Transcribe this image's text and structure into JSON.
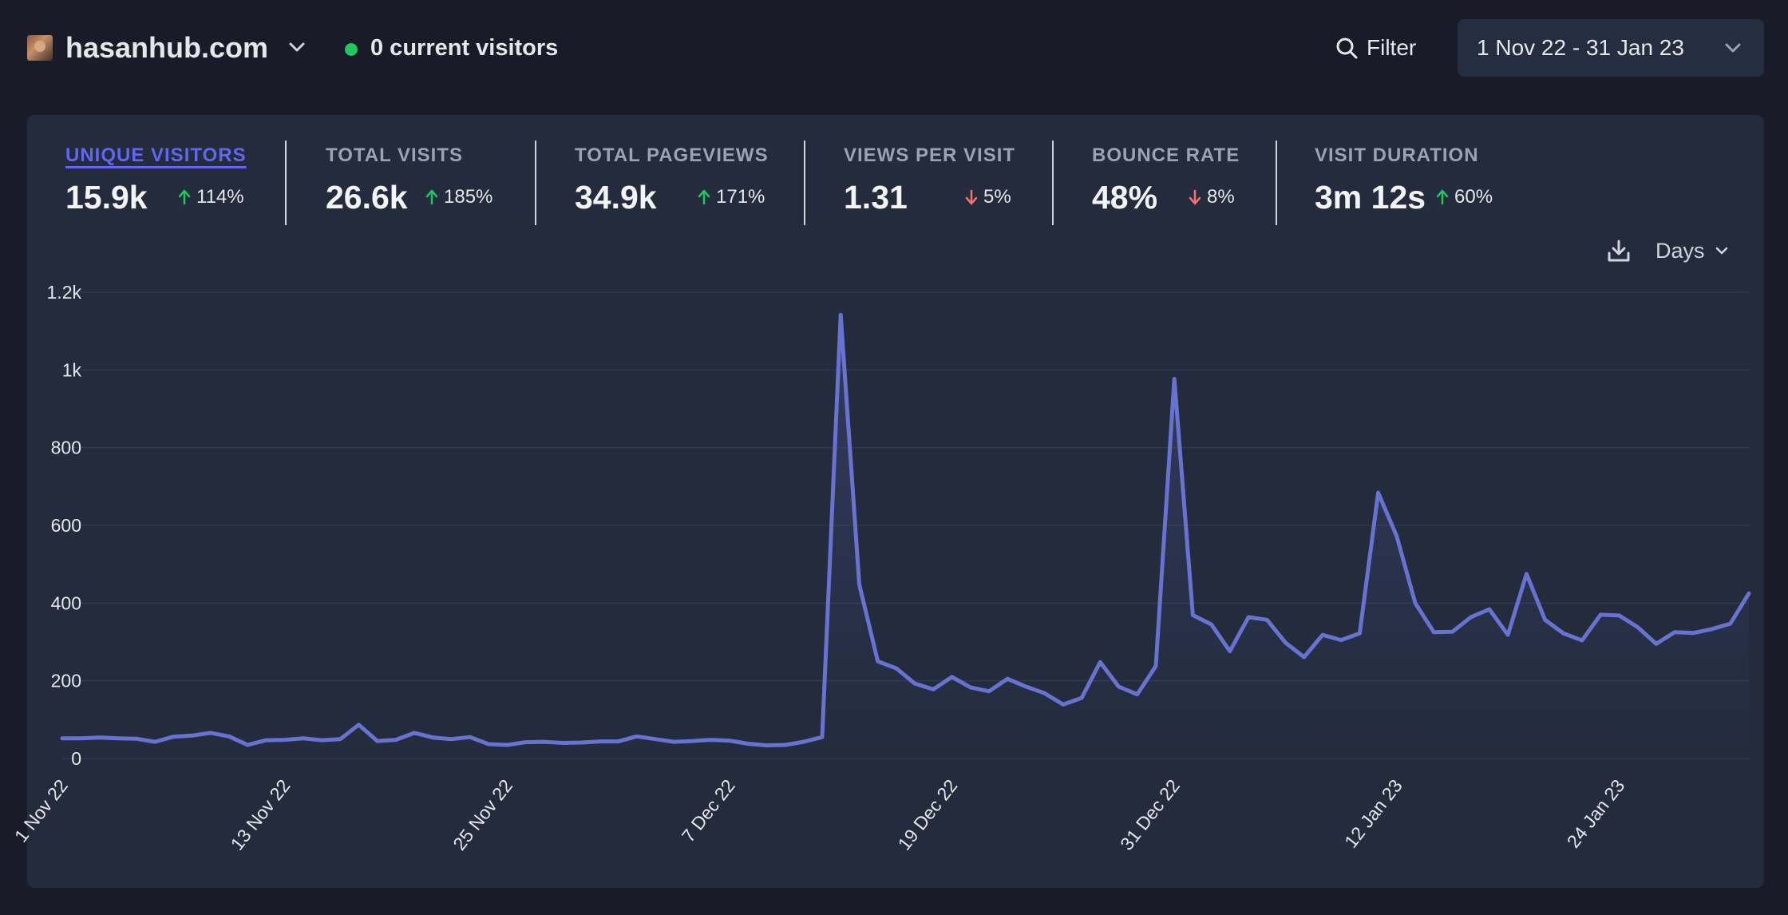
{
  "header": {
    "site_name": "hasanhub.com",
    "current_visitors": "0 current visitors",
    "filter_label": "Filter",
    "date_range": "1 Nov 22 - 31 Jan 23"
  },
  "icons": {
    "site_dropdown": "chevron-down-icon",
    "live": "live-dot-icon",
    "filter": "search-icon",
    "date_dropdown": "chevron-down-icon",
    "download": "download-icon",
    "interval_dropdown": "chevron-down-icon",
    "up": "arrow-up-icon",
    "down": "arrow-down-icon"
  },
  "colors": {
    "background": "#191c28",
    "card": "#232b3d",
    "accent": "#6366f1",
    "line": "#6872cf",
    "up": "#22c55e",
    "down": "#f87171"
  },
  "stats": [
    {
      "title": "UNIQUE VISITORS",
      "value": "15.9k",
      "change": "114%",
      "direction": "up",
      "active": true
    },
    {
      "title": "TOTAL VISITS",
      "value": "26.6k",
      "change": "185%",
      "direction": "up",
      "active": false
    },
    {
      "title": "TOTAL PAGEVIEWS",
      "value": "34.9k",
      "change": "171%",
      "direction": "up",
      "active": false
    },
    {
      "title": "VIEWS PER VISIT",
      "value": "1.31",
      "change": "5%",
      "direction": "down",
      "active": false
    },
    {
      "title": "BOUNCE RATE",
      "value": "48%",
      "change": "8%",
      "direction": "down",
      "active": false
    },
    {
      "title": "VISIT DURATION",
      "value": "3m 12s",
      "change": "60%",
      "direction": "up",
      "active": false
    }
  ],
  "interval_label": "Days",
  "chart_data": {
    "type": "area",
    "title": "",
    "xlabel": "",
    "ylabel": "",
    "ylim": [
      0,
      1200
    ],
    "y_ticks": [
      0,
      200,
      400,
      600,
      800,
      1000,
      1200
    ],
    "y_tick_labels": [
      "0",
      "200",
      "400",
      "600",
      "800",
      "1k",
      "1.2k"
    ],
    "x_tick_labels": [
      "1 Nov 22",
      "13 Nov 22",
      "25 Nov 22",
      "7 Dec 22",
      "19 Dec 22",
      "31 Dec 22",
      "12 Jan 23",
      "24 Jan 23"
    ],
    "x_tick_dates": [
      "2022-11-01",
      "2022-11-13",
      "2022-11-25",
      "2022-12-07",
      "2022-12-19",
      "2022-12-31",
      "2023-01-12",
      "2023-01-24"
    ],
    "grid": true,
    "series": [
      {
        "name": "",
        "start_date": "2022-11-01",
        "values": [
          52,
          52,
          54,
          52,
          51,
          43,
          56,
          59,
          66,
          57,
          35,
          47,
          48,
          52,
          47,
          50,
          87,
          45,
          48,
          66,
          54,
          50,
          55,
          37,
          35,
          42,
          43,
          40,
          41,
          44,
          44,
          57,
          50,
          43,
          45,
          48,
          46,
          38,
          34,
          35,
          43,
          55,
          1142,
          448,
          250,
          232,
          193,
          178,
          210,
          183,
          173,
          205,
          185,
          168,
          139,
          156,
          248,
          185,
          165,
          238,
          977,
          369,
          345,
          276,
          364,
          357,
          298,
          261,
          318,
          305,
          322,
          684,
          572,
          400,
          325,
          326,
          364,
          384,
          318,
          475,
          357,
          322,
          304,
          370,
          368,
          338,
          295,
          325,
          323,
          333,
          347,
          425
        ]
      }
    ]
  }
}
